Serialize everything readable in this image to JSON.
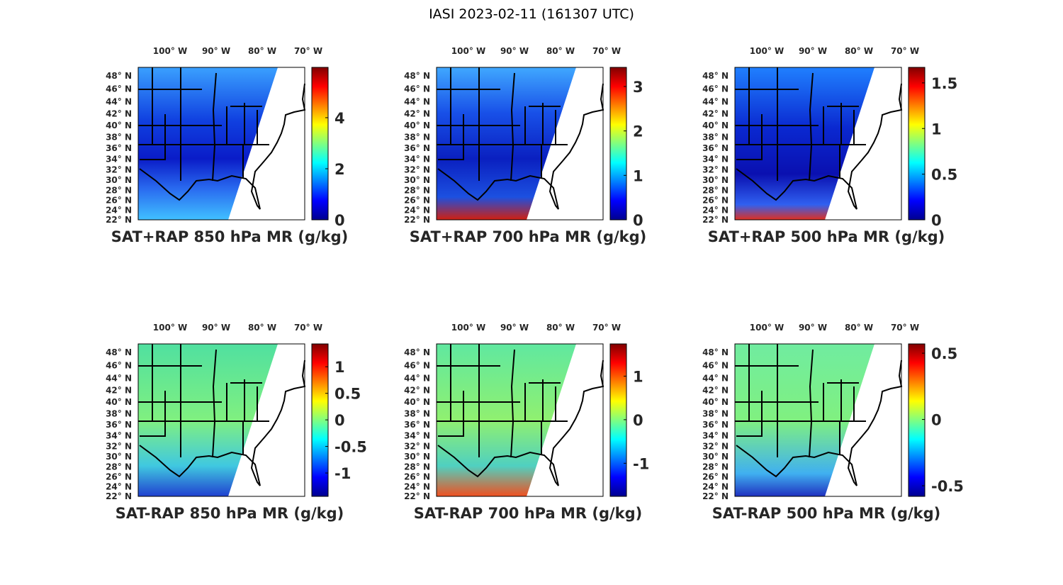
{
  "figure_title": "IASI 2023-02-11 (161307 UTC)",
  "chart_data": [
    {
      "type": "heatmap",
      "title": "SAT+RAP 850 hPa MR (g/kg)",
      "clim": [
        0,
        5.97
      ],
      "colorbar_ticks": [
        {
          "v": 0,
          "label": "0"
        },
        {
          "v": 2,
          "label": "2"
        },
        {
          "v": 4,
          "label": "4"
        }
      ],
      "lon_ticks": [
        {
          "v": -100,
          "label": "100° W"
        },
        {
          "v": -90,
          "label": "90° W"
        },
        {
          "v": -80,
          "label": "80° W"
        },
        {
          "v": -70,
          "label": "70° W"
        }
      ],
      "lat_ticks": [
        {
          "v": 48,
          "label": "48° N"
        },
        {
          "v": 46,
          "label": "46° N"
        },
        {
          "v": 44,
          "label": "44° N"
        },
        {
          "v": 42,
          "label": "42° N"
        },
        {
          "v": 40,
          "label": "40° N"
        },
        {
          "v": 38,
          "label": "38° N"
        },
        {
          "v": 36,
          "label": "36° N"
        },
        {
          "v": 34,
          "label": "34° N"
        },
        {
          "v": 32,
          "label": "32° N"
        },
        {
          "v": 30,
          "label": "30° N"
        },
        {
          "v": 28,
          "label": "28° N"
        },
        {
          "v": 26,
          "label": "26° N"
        },
        {
          "v": 24,
          "label": "24° N"
        },
        {
          "v": 22,
          "label": "22° N"
        }
      ],
      "colormap": "jet"
    },
    {
      "type": "heatmap",
      "title": "SAT+RAP 700 hPa MR (g/kg)",
      "clim": [
        0,
        3.43
      ],
      "colorbar_ticks": [
        {
          "v": 0,
          "label": "0"
        },
        {
          "v": 1,
          "label": "1"
        },
        {
          "v": 2,
          "label": "2"
        },
        {
          "v": 3,
          "label": "3"
        }
      ],
      "lon_ticks": [
        {
          "v": -100,
          "label": "100° W"
        },
        {
          "v": -90,
          "label": "90° W"
        },
        {
          "v": -80,
          "label": "80° W"
        },
        {
          "v": -70,
          "label": "70° W"
        }
      ],
      "lat_ticks": [
        {
          "v": 48,
          "label": "48° N"
        },
        {
          "v": 46,
          "label": "46° N"
        },
        {
          "v": 44,
          "label": "44° N"
        },
        {
          "v": 42,
          "label": "42° N"
        },
        {
          "v": 40,
          "label": "40° N"
        },
        {
          "v": 38,
          "label": "38° N"
        },
        {
          "v": 36,
          "label": "36° N"
        },
        {
          "v": 34,
          "label": "34° N"
        },
        {
          "v": 32,
          "label": "32° N"
        },
        {
          "v": 30,
          "label": "30° N"
        },
        {
          "v": 28,
          "label": "28° N"
        },
        {
          "v": 26,
          "label": "26° N"
        },
        {
          "v": 24,
          "label": "24° N"
        },
        {
          "v": 22,
          "label": "22° N"
        }
      ],
      "colormap": "jet"
    },
    {
      "type": "heatmap",
      "title": "SAT+RAP 500 hPa MR (g/kg)",
      "clim": [
        0,
        1.67
      ],
      "colorbar_ticks": [
        {
          "v": 0,
          "label": "0"
        },
        {
          "v": 0.5,
          "label": "0.5"
        },
        {
          "v": 1,
          "label": "1"
        },
        {
          "v": 1.5,
          "label": "1.5"
        }
      ],
      "lon_ticks": [
        {
          "v": -100,
          "label": "100° W"
        },
        {
          "v": -90,
          "label": "90° W"
        },
        {
          "v": -80,
          "label": "80° W"
        },
        {
          "v": -70,
          "label": "70° W"
        }
      ],
      "lat_ticks": [
        {
          "v": 48,
          "label": "48° N"
        },
        {
          "v": 46,
          "label": "46° N"
        },
        {
          "v": 44,
          "label": "44° N"
        },
        {
          "v": 42,
          "label": "42° N"
        },
        {
          "v": 40,
          "label": "40° N"
        },
        {
          "v": 38,
          "label": "38° N"
        },
        {
          "v": 36,
          "label": "36° N"
        },
        {
          "v": 34,
          "label": "34° N"
        },
        {
          "v": 32,
          "label": "32° N"
        },
        {
          "v": 30,
          "label": "30° N"
        },
        {
          "v": 28,
          "label": "28° N"
        },
        {
          "v": 26,
          "label": "26° N"
        },
        {
          "v": 24,
          "label": "24° N"
        },
        {
          "v": 22,
          "label": "22° N"
        }
      ],
      "colormap": "jet"
    },
    {
      "type": "heatmap",
      "title": "SAT-RAP 850 hPa MR (g/kg)",
      "clim": [
        -1.44,
        1.43
      ],
      "colorbar_ticks": [
        {
          "v": 1,
          "label": "1"
        },
        {
          "v": 0.5,
          "label": "0.5"
        },
        {
          "v": 0,
          "label": "0"
        },
        {
          "v": -0.5,
          "label": "-0.5"
        },
        {
          "v": -1,
          "label": "-1"
        }
      ],
      "lon_ticks": [
        {
          "v": -100,
          "label": "100° W"
        },
        {
          "v": -90,
          "label": "90° W"
        },
        {
          "v": -80,
          "label": "80° W"
        },
        {
          "v": -70,
          "label": "70° W"
        }
      ],
      "lat_ticks": [
        {
          "v": 48,
          "label": "48° N"
        },
        {
          "v": 46,
          "label": "46° N"
        },
        {
          "v": 44,
          "label": "44° N"
        },
        {
          "v": 42,
          "label": "42° N"
        },
        {
          "v": 40,
          "label": "40° N"
        },
        {
          "v": 38,
          "label": "38° N"
        },
        {
          "v": 36,
          "label": "36° N"
        },
        {
          "v": 34,
          "label": "34° N"
        },
        {
          "v": 32,
          "label": "32° N"
        },
        {
          "v": 30,
          "label": "30° N"
        },
        {
          "v": 28,
          "label": "28° N"
        },
        {
          "v": 26,
          "label": "26° N"
        },
        {
          "v": 24,
          "label": "24° N"
        },
        {
          "v": 22,
          "label": "22° N"
        }
      ],
      "colormap": "jet"
    },
    {
      "type": "heatmap",
      "title": "SAT-RAP 700 hPa MR (g/kg)",
      "clim": [
        -1.76,
        1.74
      ],
      "colorbar_ticks": [
        {
          "v": 1,
          "label": "1"
        },
        {
          "v": 0,
          "label": "0"
        },
        {
          "v": -1,
          "label": "-1"
        }
      ],
      "lon_ticks": [
        {
          "v": -100,
          "label": "100° W"
        },
        {
          "v": -90,
          "label": "90° W"
        },
        {
          "v": -80,
          "label": "80° W"
        },
        {
          "v": -70,
          "label": "70° W"
        }
      ],
      "lat_ticks": [
        {
          "v": 48,
          "label": "48° N"
        },
        {
          "v": 46,
          "label": "46° N"
        },
        {
          "v": 44,
          "label": "44° N"
        },
        {
          "v": 42,
          "label": "42° N"
        },
        {
          "v": 40,
          "label": "40° N"
        },
        {
          "v": 38,
          "label": "38° N"
        },
        {
          "v": 36,
          "label": "36° N"
        },
        {
          "v": 34,
          "label": "34° N"
        },
        {
          "v": 32,
          "label": "32° N"
        },
        {
          "v": 30,
          "label": "30° N"
        },
        {
          "v": 28,
          "label": "28° N"
        },
        {
          "v": 26,
          "label": "26° N"
        },
        {
          "v": 24,
          "label": "24° N"
        },
        {
          "v": 22,
          "label": "22° N"
        }
      ],
      "colormap": "jet"
    },
    {
      "type": "heatmap",
      "title": "SAT-RAP 500 hPa MR (g/kg)",
      "clim": [
        -0.58,
        0.57
      ],
      "colorbar_ticks": [
        {
          "v": 0.5,
          "label": "0.5"
        },
        {
          "v": 0,
          "label": "0"
        },
        {
          "v": -0.5,
          "label": "-0.5"
        }
      ],
      "lon_ticks": [
        {
          "v": -100,
          "label": "100° W"
        },
        {
          "v": -90,
          "label": "90° W"
        },
        {
          "v": -80,
          "label": "80° W"
        },
        {
          "v": -70,
          "label": "70° W"
        }
      ],
      "lat_ticks": [
        {
          "v": 48,
          "label": "48° N"
        },
        {
          "v": 46,
          "label": "46° N"
        },
        {
          "v": 44,
          "label": "44° N"
        },
        {
          "v": 42,
          "label": "42° N"
        },
        {
          "v": 40,
          "label": "40° N"
        },
        {
          "v": 38,
          "label": "38° N"
        },
        {
          "v": 36,
          "label": "36° N"
        },
        {
          "v": 34,
          "label": "34° N"
        },
        {
          "v": 32,
          "label": "32° N"
        },
        {
          "v": 30,
          "label": "30° N"
        },
        {
          "v": 28,
          "label": "28° N"
        },
        {
          "v": 26,
          "label": "26° N"
        },
        {
          "v": 24,
          "label": "24° N"
        },
        {
          "v": 22,
          "label": "22° N"
        }
      ],
      "colormap": "jet"
    }
  ]
}
